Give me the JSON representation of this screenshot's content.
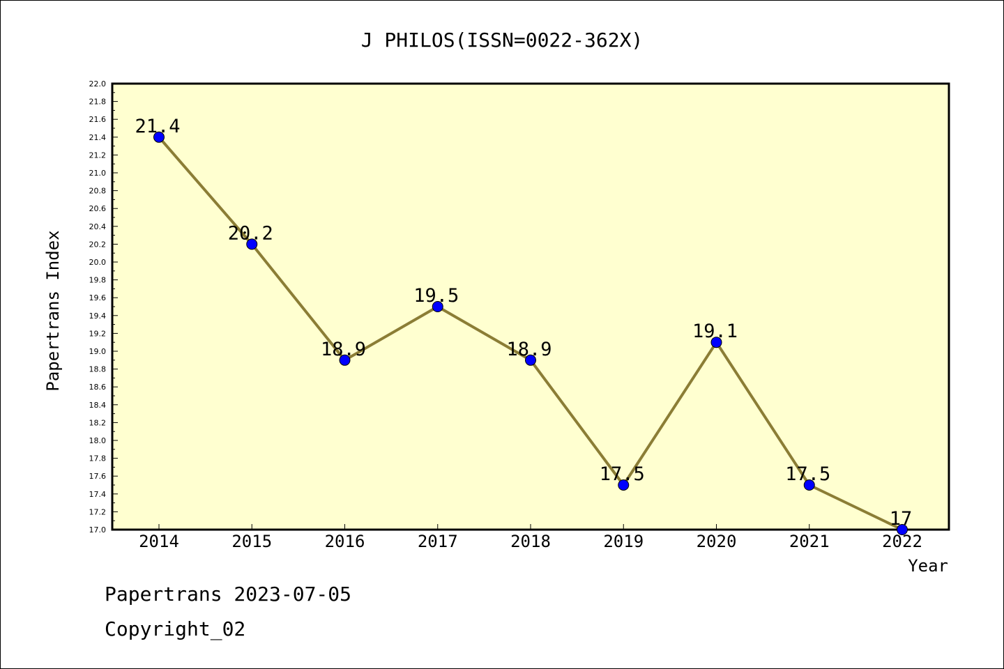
{
  "chart_data": {
    "type": "line",
    "title": "J PHILOS(ISSN=0022-362X)",
    "xlabel": "Year",
    "ylabel": "Papertrans Index",
    "categories": [
      "2014",
      "2015",
      "2016",
      "2017",
      "2018",
      "2019",
      "2020",
      "2021",
      "2022"
    ],
    "series": [
      {
        "values": [
          21.4,
          20.2,
          18.9,
          19.5,
          18.9,
          17.5,
          19.1,
          17.5,
          17.0
        ],
        "data_labels": [
          "21.4",
          "20.2",
          "18.9",
          "19.5",
          "18.9",
          "17.5",
          "19.1",
          "17.5",
          "17"
        ]
      }
    ],
    "ylim": [
      17.0,
      22.0
    ],
    "ytick_labels": [
      "17.0",
      "17.2",
      "17.4",
      "17.6",
      "17.8",
      "18.0",
      "18.2",
      "18.4",
      "18.6",
      "18.8",
      "19.0",
      "19.2",
      "19.4",
      "19.6",
      "19.8",
      "20.0",
      "20.2",
      "20.4",
      "20.6",
      "20.8",
      "21.0",
      "21.2",
      "21.4",
      "21.6",
      "21.8",
      "22.0"
    ],
    "grid": false,
    "colors": {
      "plot_background": "#ffffd0",
      "line": "#8b7d35",
      "marker": "#0000ff"
    }
  },
  "footer": {
    "line1": "Papertrans 2023-07-05",
    "line2": "Copyright_02"
  }
}
